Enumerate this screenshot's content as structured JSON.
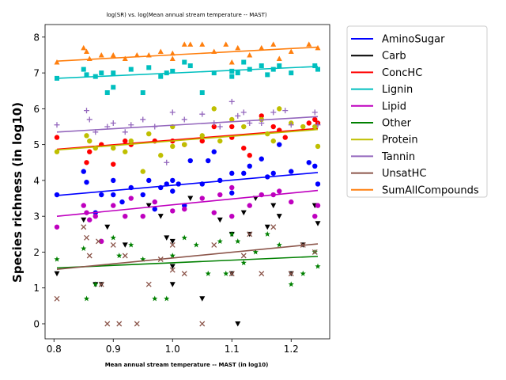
{
  "chart_data": {
    "type": "scatter",
    "title": "log(SR) vs. log(Mean annual stream temperature -- MAST)",
    "xlabel": "Mean annual stream temperature -- MAST (in log10)",
    "ylabel": "Species richness (in log10)",
    "xlim": [
      0.785,
      1.265
    ],
    "ylim": [
      -0.42,
      8.35
    ],
    "xticks": [
      0.8,
      0.9,
      1.0,
      1.1,
      1.2
    ],
    "xtick_labels": [
      "0.8",
      "0.9",
      "1.0",
      "1.1",
      "1.2"
    ],
    "yticks": [
      0,
      1,
      2,
      3,
      4,
      5,
      6,
      7,
      8
    ],
    "ytick_labels": [
      "0",
      "1",
      "2",
      "3",
      "4",
      "5",
      "6",
      "7",
      "8"
    ],
    "grid": false,
    "legend_position": "outside-right",
    "series": [
      {
        "name": "AminoSugar",
        "color": "#0000ff",
        "marker": "circle",
        "fit": [
          [
            0.805,
            3.58
          ],
          [
            1.245,
            4.22
          ]
        ],
        "points": [
          [
            0.805,
            3.6
          ],
          [
            0.85,
            4.25
          ],
          [
            0.855,
            3.95
          ],
          [
            0.87,
            3.1
          ],
          [
            0.88,
            3.6
          ],
          [
            0.9,
            4.0
          ],
          [
            0.9,
            3.6
          ],
          [
            0.915,
            3.4
          ],
          [
            0.93,
            3.8
          ],
          [
            0.95,
            3.6
          ],
          [
            0.96,
            4.0
          ],
          [
            0.97,
            3.2
          ],
          [
            0.98,
            3.8
          ],
          [
            0.99,
            3.9
          ],
          [
            1.0,
            4.0
          ],
          [
            1.0,
            3.7
          ],
          [
            1.01,
            3.9
          ],
          [
            1.02,
            3.3
          ],
          [
            1.03,
            4.55
          ],
          [
            1.05,
            3.9
          ],
          [
            1.06,
            4.55
          ],
          [
            1.07,
            4.8
          ],
          [
            1.08,
            4.0
          ],
          [
            1.1,
            4.2
          ],
          [
            1.1,
            3.65
          ],
          [
            1.12,
            4.2
          ],
          [
            1.13,
            4.4
          ],
          [
            1.15,
            4.6
          ],
          [
            1.16,
            4.1
          ],
          [
            1.17,
            4.2
          ],
          [
            1.18,
            5.0
          ],
          [
            1.2,
            4.25
          ],
          [
            1.23,
            4.5
          ],
          [
            1.24,
            4.4
          ],
          [
            1.245,
            3.9
          ]
        ]
      },
      {
        "name": "Carb",
        "color": "#000000",
        "marker": "triangle-down",
        "fit": null,
        "points": [
          [
            0.805,
            1.4
          ],
          [
            0.85,
            2.9
          ],
          [
            0.87,
            1.1
          ],
          [
            0.88,
            1.1
          ],
          [
            0.89,
            2.7
          ],
          [
            0.92,
            2.2
          ],
          [
            0.96,
            3.3
          ],
          [
            0.98,
            3.0
          ],
          [
            0.99,
            2.4
          ],
          [
            1.0,
            2.3
          ],
          [
            1.0,
            1.6
          ],
          [
            1.0,
            1.1
          ],
          [
            1.03,
            3.5
          ],
          [
            1.05,
            0.7
          ],
          [
            1.08,
            2.9
          ],
          [
            1.1,
            2.5
          ],
          [
            1.1,
            1.4
          ],
          [
            1.11,
            0.0
          ],
          [
            1.12,
            3.1
          ],
          [
            1.13,
            2.5
          ],
          [
            1.14,
            3.5
          ],
          [
            1.16,
            2.7
          ],
          [
            1.17,
            3.3
          ],
          [
            1.18,
            3.0
          ],
          [
            1.2,
            1.4
          ],
          [
            1.22,
            2.2
          ],
          [
            1.24,
            3.3
          ],
          [
            1.245,
            2.8
          ]
        ]
      },
      {
        "name": "ConcHC",
        "color": "#ff0000",
        "marker": "circle",
        "fit": [
          [
            0.805,
            4.87
          ],
          [
            1.245,
            5.45
          ]
        ],
        "points": [
          [
            0.805,
            5.2
          ],
          [
            0.855,
            4.5
          ],
          [
            0.86,
            4.8
          ],
          [
            0.88,
            5.0
          ],
          [
            0.9,
            4.45
          ],
          [
            0.92,
            5.1
          ],
          [
            0.93,
            5.0
          ],
          [
            0.97,
            5.1
          ],
          [
            1.0,
            5.1
          ],
          [
            1.02,
            5.0
          ],
          [
            1.05,
            5.1
          ],
          [
            1.07,
            5.5
          ],
          [
            1.1,
            5.5
          ],
          [
            1.1,
            5.2
          ],
          [
            1.12,
            4.9
          ],
          [
            1.13,
            4.7
          ],
          [
            1.15,
            5.8
          ],
          [
            1.17,
            5.5
          ],
          [
            1.18,
            5.4
          ],
          [
            1.19,
            5.2
          ],
          [
            1.23,
            5.6
          ],
          [
            1.24,
            5.7
          ],
          [
            1.245,
            5.6
          ]
        ]
      },
      {
        "name": "Lignin",
        "color": "#00bfbf",
        "marker": "square",
        "fit": [
          [
            0.805,
            6.85
          ],
          [
            1.245,
            7.18
          ]
        ],
        "points": [
          [
            0.805,
            6.85
          ],
          [
            0.85,
            7.1
          ],
          [
            0.855,
            6.95
          ],
          [
            0.87,
            6.9
          ],
          [
            0.88,
            7.0
          ],
          [
            0.89,
            6.45
          ],
          [
            0.9,
            7.0
          ],
          [
            0.9,
            6.6
          ],
          [
            0.93,
            7.1
          ],
          [
            0.95,
            6.45
          ],
          [
            0.96,
            7.15
          ],
          [
            0.98,
            6.9
          ],
          [
            0.99,
            7.0
          ],
          [
            1.0,
            7.05
          ],
          [
            1.02,
            7.3
          ],
          [
            1.03,
            7.2
          ],
          [
            1.05,
            6.45
          ],
          [
            1.07,
            7.0
          ],
          [
            1.1,
            6.9
          ],
          [
            1.1,
            7.05
          ],
          [
            1.11,
            7.0
          ],
          [
            1.12,
            7.3
          ],
          [
            1.13,
            7.1
          ],
          [
            1.15,
            7.2
          ],
          [
            1.16,
            6.95
          ],
          [
            1.17,
            7.1
          ],
          [
            1.18,
            7.2
          ],
          [
            1.2,
            7.0
          ],
          [
            1.24,
            7.2
          ],
          [
            1.245,
            7.1
          ]
        ]
      },
      {
        "name": "Lipid",
        "color": "#bf00bf",
        "marker": "circle",
        "fit": [
          [
            0.805,
            3.0
          ],
          [
            1.245,
            3.72
          ]
        ],
        "points": [
          [
            0.805,
            2.7
          ],
          [
            0.85,
            3.3
          ],
          [
            0.855,
            3.1
          ],
          [
            0.86,
            2.9
          ],
          [
            0.87,
            3.0
          ],
          [
            0.88,
            2.3
          ],
          [
            0.9,
            3.3
          ],
          [
            0.92,
            3.0
          ],
          [
            0.93,
            3.5
          ],
          [
            0.95,
            3.0
          ],
          [
            0.97,
            3.4
          ],
          [
            1.0,
            3.15
          ],
          [
            1.02,
            3.2
          ],
          [
            1.05,
            3.5
          ],
          [
            1.07,
            3.1
          ],
          [
            1.08,
            3.6
          ],
          [
            1.1,
            3.0
          ],
          [
            1.1,
            3.8
          ],
          [
            1.13,
            3.3
          ],
          [
            1.15,
            3.6
          ],
          [
            1.17,
            3.6
          ],
          [
            1.18,
            3.7
          ],
          [
            1.2,
            3.4
          ],
          [
            1.24,
            3.0
          ],
          [
            1.245,
            3.3
          ]
        ]
      },
      {
        "name": "Other",
        "color": "#008000",
        "marker": "star",
        "fit": [
          [
            0.805,
            1.56
          ],
          [
            1.245,
            1.88
          ]
        ],
        "points": [
          [
            0.805,
            1.8
          ],
          [
            0.85,
            2.1
          ],
          [
            0.855,
            0.7
          ],
          [
            0.87,
            1.1
          ],
          [
            0.9,
            2.4
          ],
          [
            0.91,
            1.9
          ],
          [
            0.93,
            2.2
          ],
          [
            0.95,
            1.8
          ],
          [
            0.97,
            0.7
          ],
          [
            0.99,
            0.7
          ],
          [
            1.0,
            1.9
          ],
          [
            1.02,
            2.4
          ],
          [
            1.04,
            2.2
          ],
          [
            1.06,
            1.4
          ],
          [
            1.08,
            2.3
          ],
          [
            1.09,
            1.4
          ],
          [
            1.1,
            2.5
          ],
          [
            1.11,
            2.3
          ],
          [
            1.12,
            1.7
          ],
          [
            1.14,
            2.0
          ],
          [
            1.16,
            2.5
          ],
          [
            1.18,
            2.2
          ],
          [
            1.2,
            1.1
          ],
          [
            1.22,
            1.4
          ],
          [
            1.24,
            2.0
          ],
          [
            1.245,
            1.6
          ]
        ]
      },
      {
        "name": "Protein",
        "color": "#bfbf00",
        "marker": "circle",
        "fit": [
          [
            0.805,
            4.85
          ],
          [
            1.245,
            5.42
          ]
        ],
        "points": [
          [
            0.805,
            4.8
          ],
          [
            0.855,
            5.25
          ],
          [
            0.86,
            5.1
          ],
          [
            0.87,
            4.9
          ],
          [
            0.9,
            4.9
          ],
          [
            0.92,
            4.8
          ],
          [
            0.93,
            5.1
          ],
          [
            0.95,
            4.25
          ],
          [
            0.96,
            5.3
          ],
          [
            0.98,
            4.7
          ],
          [
            1.0,
            4.95
          ],
          [
            1.0,
            5.5
          ],
          [
            1.02,
            5.0
          ],
          [
            1.05,
            5.25
          ],
          [
            1.07,
            6.0
          ],
          [
            1.08,
            5.1
          ],
          [
            1.1,
            5.7
          ],
          [
            1.12,
            5.5
          ],
          [
            1.15,
            5.7
          ],
          [
            1.16,
            5.3
          ],
          [
            1.17,
            5.1
          ],
          [
            1.18,
            6.0
          ],
          [
            1.2,
            5.6
          ],
          [
            1.22,
            5.5
          ],
          [
            1.24,
            5.5
          ],
          [
            1.245,
            4.95
          ]
        ]
      },
      {
        "name": "Tannin",
        "color": "#9467bd",
        "marker": "plus",
        "fit": [
          [
            0.805,
            5.35
          ],
          [
            1.245,
            5.78
          ]
        ],
        "points": [
          [
            0.805,
            5.55
          ],
          [
            0.855,
            5.95
          ],
          [
            0.86,
            5.7
          ],
          [
            0.87,
            5.35
          ],
          [
            0.89,
            5.5
          ],
          [
            0.9,
            5.6
          ],
          [
            0.92,
            5.35
          ],
          [
            0.93,
            5.55
          ],
          [
            0.95,
            5.7
          ],
          [
            0.97,
            5.5
          ],
          [
            0.99,
            4.5
          ],
          [
            1.0,
            5.9
          ],
          [
            1.02,
            5.7
          ],
          [
            1.05,
            5.85
          ],
          [
            1.07,
            5.6
          ],
          [
            1.08,
            5.5
          ],
          [
            1.1,
            6.2
          ],
          [
            1.11,
            5.8
          ],
          [
            1.12,
            5.9
          ],
          [
            1.13,
            5.6
          ],
          [
            1.15,
            5.6
          ],
          [
            1.17,
            5.9
          ],
          [
            1.19,
            5.95
          ],
          [
            1.2,
            5.55
          ],
          [
            1.24,
            5.9
          ],
          [
            1.245,
            5.55
          ]
        ]
      },
      {
        "name": "UnsatHC",
        "color": "#8c564b",
        "marker": "x",
        "fit": [
          [
            0.805,
            1.52
          ],
          [
            1.245,
            2.23
          ]
        ],
        "points": [
          [
            0.805,
            0.7
          ],
          [
            0.85,
            2.7
          ],
          [
            0.855,
            2.4
          ],
          [
            0.86,
            1.9
          ],
          [
            0.875,
            2.3
          ],
          [
            0.88,
            1.1
          ],
          [
            0.89,
            0.0
          ],
          [
            0.9,
            2.2
          ],
          [
            0.91,
            0.0
          ],
          [
            0.92,
            1.9
          ],
          [
            0.94,
            0.0
          ],
          [
            0.96,
            1.1
          ],
          [
            0.98,
            1.8
          ],
          [
            1.0,
            2.2
          ],
          [
            1.0,
            1.5
          ],
          [
            1.02,
            1.4
          ],
          [
            1.05,
            0.0
          ],
          [
            1.07,
            2.2
          ],
          [
            1.1,
            1.4
          ],
          [
            1.12,
            1.9
          ],
          [
            1.13,
            2.5
          ],
          [
            1.15,
            1.4
          ],
          [
            1.17,
            2.7
          ],
          [
            1.2,
            1.4
          ],
          [
            1.22,
            2.2
          ],
          [
            1.24,
            2.0
          ]
        ]
      },
      {
        "name": "SumAllCompounds",
        "color": "#ff7f0e",
        "marker": "triangle-up",
        "fit": [
          [
            0.805,
            7.33
          ],
          [
            1.245,
            7.72
          ]
        ],
        "points": [
          [
            0.805,
            7.3
          ],
          [
            0.85,
            7.7
          ],
          [
            0.855,
            7.6
          ],
          [
            0.86,
            7.4
          ],
          [
            0.88,
            7.5
          ],
          [
            0.9,
            7.5
          ],
          [
            0.92,
            7.4
          ],
          [
            0.94,
            7.5
          ],
          [
            0.96,
            7.5
          ],
          [
            0.98,
            7.6
          ],
          [
            1.0,
            7.55
          ],
          [
            1.0,
            7.4
          ],
          [
            1.02,
            7.8
          ],
          [
            1.03,
            7.8
          ],
          [
            1.05,
            7.8
          ],
          [
            1.07,
            7.6
          ],
          [
            1.09,
            7.8
          ],
          [
            1.1,
            7.3
          ],
          [
            1.11,
            7.7
          ],
          [
            1.13,
            7.5
          ],
          [
            1.15,
            7.7
          ],
          [
            1.17,
            7.8
          ],
          [
            1.18,
            7.4
          ],
          [
            1.2,
            7.6
          ],
          [
            1.23,
            7.8
          ],
          [
            1.245,
            7.7
          ]
        ]
      }
    ]
  }
}
